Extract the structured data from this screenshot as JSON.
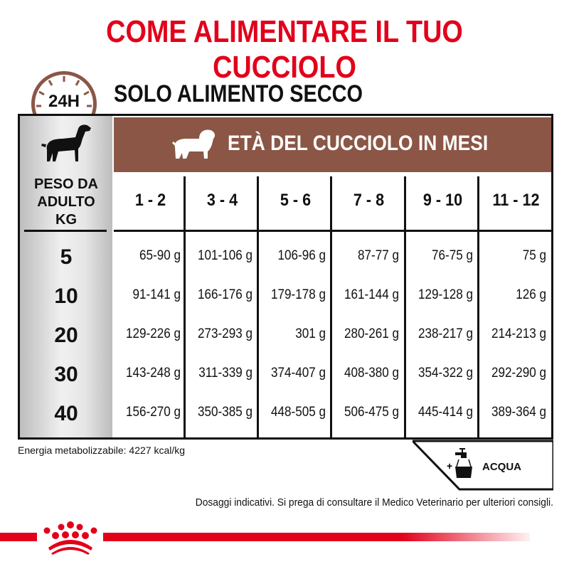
{
  "title": "COME ALIMENTARE IL TUO CUCCIOLO",
  "clock_label": "24H",
  "subtitle": "SOLO ALIMENTO SECCO",
  "table": {
    "header": "ETÀ DEL CUCCIOLO IN MESI",
    "row_header": [
      "PESO DA",
      "ADULTO",
      "KG"
    ],
    "columns": [
      "1 - 2",
      "3 - 4",
      "5 - 6",
      "7 - 8",
      "9 - 10",
      "11 - 12"
    ],
    "rows": [
      {
        "kg": "5",
        "values": [
          "65-90 g",
          "101-106 g",
          "106-96 g",
          "87-77 g",
          "76-75 g",
          "75 g"
        ]
      },
      {
        "kg": "10",
        "values": [
          "91-141 g",
          "166-176 g",
          "179-178 g",
          "161-144 g",
          "129-128 g",
          "126 g"
        ]
      },
      {
        "kg": "20",
        "values": [
          "129-226 g",
          "273-293 g",
          "301 g",
          "280-261 g",
          "238-217 g",
          "214-213 g"
        ]
      },
      {
        "kg": "30",
        "values": [
          "143-248 g",
          "311-339 g",
          "374-407 g",
          "408-380 g",
          "354-322 g",
          "292-290 g"
        ]
      },
      {
        "kg": "40",
        "values": [
          "156-270 g",
          "350-385 g",
          "448-505 g",
          "506-475 g",
          "445-414 g",
          "389-364 g"
        ]
      }
    ]
  },
  "energy": "Energia metabolizzabile: 4227 kcal/kg",
  "water": {
    "plus": "+",
    "label": "ACQUA",
    "icon": "tap-bowl-icon"
  },
  "note": "Dosaggi indicativi. Si prega di consultare il Medico Veterinario per ulteriori consigli.",
  "colors": {
    "brand_red": "#e2001a",
    "brown": "#8b5646"
  }
}
